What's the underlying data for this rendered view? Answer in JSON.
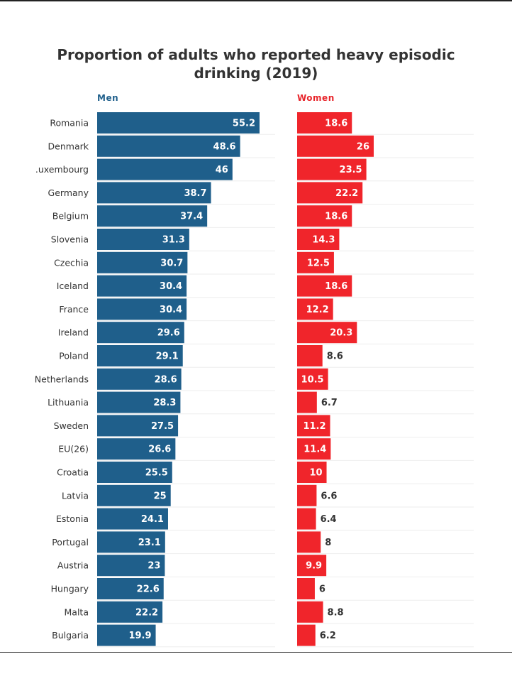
{
  "chart_data": {
    "type": "bar",
    "title": "Proportion of adults who reported heavy episodic drinking (2019)",
    "xlabel": "",
    "ylabel": "",
    "categories": [
      "Romania",
      "Denmark",
      ".uxembourg",
      "Germany",
      "Belgium",
      "Slovenia",
      "Czechia",
      "Iceland",
      "France",
      "Ireland",
      "Poland",
      "Netherlands",
      "Lithuania",
      "Sweden",
      "EU(26)",
      "Croatia",
      "Latvia",
      "Estonia",
      "Portugal",
      "Austria",
      "Hungary",
      "Malta",
      "Bulgaria"
    ],
    "series": [
      {
        "name": "Men",
        "color": "#1f5f8b",
        "values": [
          55.2,
          48.6,
          46,
          38.7,
          37.4,
          31.3,
          30.7,
          30.4,
          30.4,
          29.6,
          29.1,
          28.6,
          28.3,
          27.5,
          26.6,
          25.5,
          25,
          24.1,
          23.1,
          23,
          22.6,
          22.2,
          19.9
        ],
        "labels": [
          "55.2",
          "48.6",
          "46",
          "38.7",
          "37.4",
          "31.3",
          "30.7",
          "30.4",
          "30.4",
          "29.6",
          "29.1",
          "28.6",
          "28.3",
          "27.5",
          "26.6",
          "25.5",
          "25",
          "24.1",
          "23.1",
          "23",
          "22.6",
          "22.2",
          "19.9"
        ]
      },
      {
        "name": "Women",
        "color": "#f0252b",
        "values": [
          18.6,
          26,
          23.5,
          22.2,
          18.6,
          14.3,
          12.5,
          18.6,
          12.2,
          20.3,
          8.6,
          10.5,
          6.7,
          11.2,
          11.4,
          10,
          6.6,
          6.4,
          8,
          9.9,
          6,
          8.8,
          6.2
        ],
        "labels": [
          "18.6",
          "26",
          "23.5",
          "22.2",
          "18.6",
          "14.3",
          "12.5",
          "18.6",
          "12.2",
          "20.3",
          "8.6",
          "10.5",
          "6.7",
          "11.2",
          "11.4",
          "10",
          "6.6",
          "6.4",
          "8",
          "9.9",
          "6",
          "8.8",
          "6.2"
        ]
      }
    ],
    "legend": "panel headers above each column",
    "grid": true
  }
}
